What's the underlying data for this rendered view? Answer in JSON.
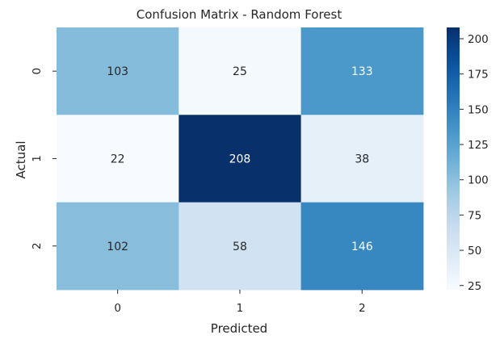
{
  "chart_data": {
    "type": "heatmap",
    "title": "Confusion Matrix - Random Forest",
    "xlabel": "Predicted",
    "ylabel": "Actual",
    "x_categories": [
      "0",
      "1",
      "2"
    ],
    "y_categories": [
      "0",
      "1",
      "2"
    ],
    "matrix": [
      [
        103,
        25,
        133
      ],
      [
        22,
        208,
        38
      ],
      [
        102,
        58,
        146
      ]
    ],
    "colormap": "Blues",
    "colorbar": {
      "range": [
        22,
        208
      ],
      "ticks": [
        25,
        50,
        75,
        100,
        125,
        150,
        175,
        200
      ],
      "tick_labels": [
        "25",
        "50",
        "75",
        "100",
        "125",
        "150",
        "175",
        "200"
      ]
    },
    "annotation_colors": {
      "light": "#ffffff",
      "dark": "#262626"
    },
    "grid": false
  }
}
